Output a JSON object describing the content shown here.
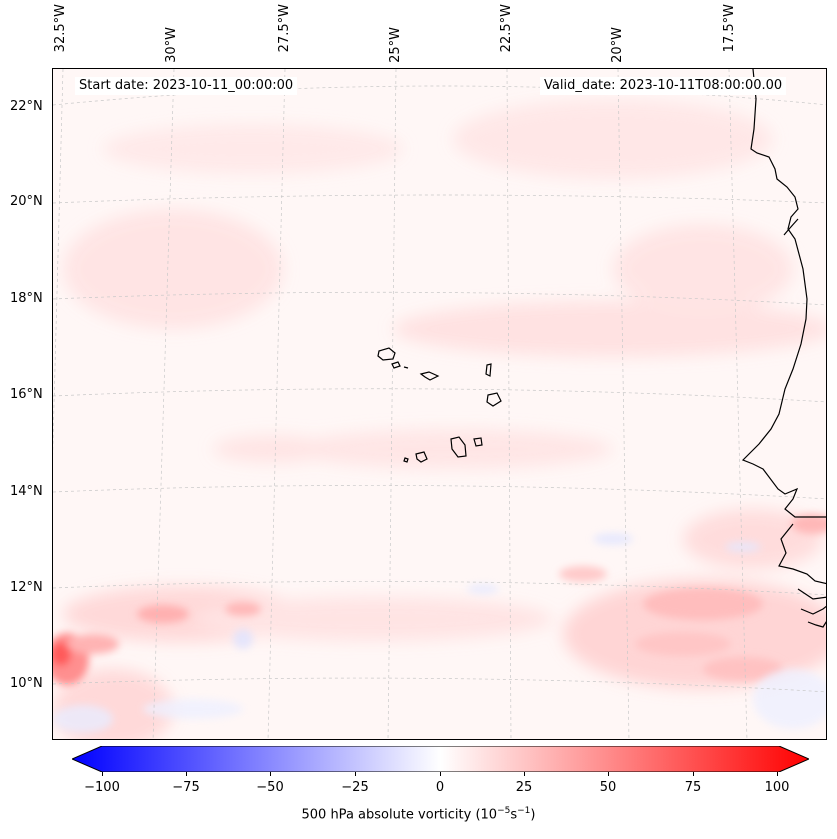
{
  "map": {
    "start_date": "Start date: 2023-10-11_00:00:00",
    "valid_date": "Valid_date: 2023-10-11T08:00:00.00",
    "lat_labels": [
      "22°N",
      "20°N",
      "18°N",
      "16°N",
      "14°N",
      "12°N",
      "10°N"
    ],
    "lon_labels": [
      "32.5°W",
      "30°W",
      "27.5°W",
      "25°W",
      "22.5°W",
      "20°W",
      "17.5°W"
    ],
    "background_color": "#fff7f6",
    "coastline_color": "#000000",
    "gridline_color": "#c8c8c8"
  },
  "colorbar": {
    "label": "500 hPa absolute vorticity (10",
    "label_exp1": "−5",
    "label_mid": "s",
    "label_exp2": "−1",
    "label_end": ")",
    "ticks": [
      "−100",
      "−75",
      "−50",
      "−25",
      "0",
      "25",
      "50",
      "75",
      "100"
    ],
    "min_color": "#0000ff",
    "mid_color": "#ffffff",
    "max_color": "#ff0000"
  }
}
